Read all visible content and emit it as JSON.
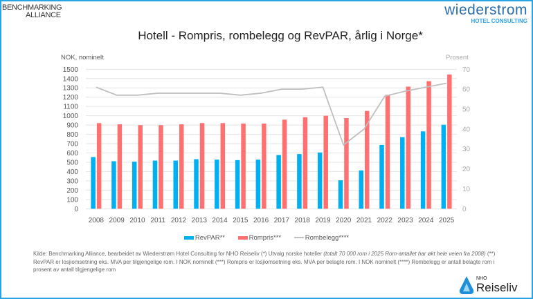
{
  "logos": {
    "benchmarking_line1": "BENCHMARKING",
    "benchmarking_line2": "ALLIANCE",
    "wiederstrom_name": "wiederstrom",
    "wiederstrom_sub": "HOTEL CONSULTING",
    "nho_top": "NHO",
    "nho_bottom": "Reiseliv"
  },
  "colors": {
    "revpar": "#00b0f0",
    "rompris": "#ff7070",
    "rombelegg": "#bfbfbf",
    "border": "#2aa3e6"
  },
  "chart_data": {
    "type": "bar+line",
    "title": "Hotell - Rompris, rombelegg og RevPAR, årlig i Norge*",
    "ylabel": "NOK, nominelt",
    "y2label": "Prosent",
    "ylim": [
      0,
      1500
    ],
    "y2lim": [
      0,
      70
    ],
    "yticks": [
      0,
      100,
      200,
      300,
      400,
      500,
      600,
      700,
      800,
      900,
      1000,
      1100,
      1200,
      1300,
      1400,
      1500
    ],
    "y2ticks": [
      0,
      10,
      20,
      30,
      40,
      50,
      60,
      70
    ],
    "grid": true,
    "legend_position": "bottom",
    "categories": [
      "2008",
      "2009",
      "2010",
      "2011",
      "2012",
      "2013",
      "2014",
      "2015",
      "2016",
      "2017",
      "2018",
      "2019",
      "2020",
      "2021",
      "2022",
      "2023",
      "2024",
      "2025"
    ],
    "series": [
      {
        "name": "RevPAR**",
        "type": "bar",
        "axis": "left",
        "values": [
          556,
          511,
          506,
          518,
          518,
          533,
          528,
          523,
          528,
          578,
          588,
          605,
          306,
          412,
          686,
          770,
          832,
          903
        ]
      },
      {
        "name": "Rompris***",
        "type": "bar",
        "axis": "left",
        "values": [
          921,
          908,
          899,
          899,
          908,
          921,
          921,
          916,
          916,
          958,
          985,
          1000,
          975,
          1052,
          1225,
          1313,
          1372,
          1444
        ]
      },
      {
        "name": "Rombelegg****",
        "type": "line",
        "axis": "right",
        "values": [
          61,
          57,
          57,
          58,
          58,
          58,
          58,
          57,
          58,
          60,
          60,
          61,
          32,
          40,
          56.5,
          59,
          61,
          63
        ]
      }
    ]
  },
  "footer": {
    "part1": "Kilde: Benchmarking Alliance, bearbeidet av Wiederstrøm Hotel Consulting for NHO Reiseliv (*) Utvalg norske hoteller ",
    "part2_italic": "(totalt 70 000 rom i 2025 Rom-antallet har økt hele veien fra 2008)",
    "part3": " (**) RevPAR er losjiomsetning eks. MVA per tilgjengelige rom. I NOK nominelt (***) Rompris er losjiomsetning eks. MVA per belagte rom. I NOK nominelt (****) Rombelegg er antall belagte rom i prosent av antall tilgjengelige rom"
  }
}
